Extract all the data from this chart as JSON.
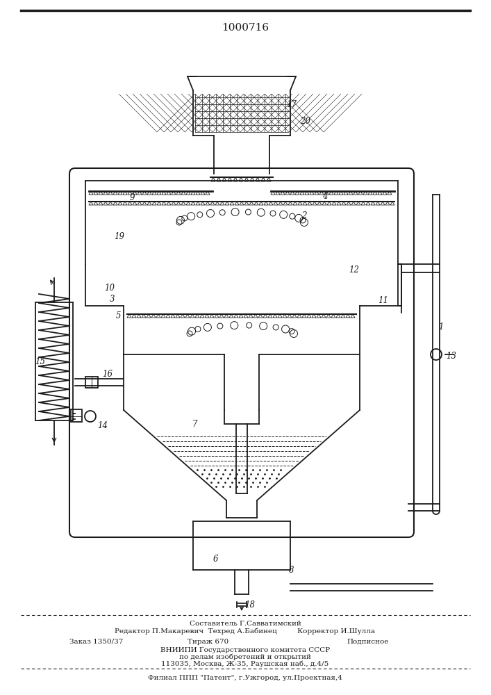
{
  "patent_number": "1000716",
  "background_color": "#ffffff",
  "line_color": "#1a1a1a",
  "footer_lines": [
    "Составитель Г.Савватимский",
    "Редактор П.Макаревич  Техред А.Бабинец         Корректор И.Шулла",
    "Заказ 1350/37          Тираж 670                    Подписное",
    "ВНИИПИ Государственного комитета СССР",
    "по делам изобретений и открытий",
    "113035, Москва, Ж-35, Раушская наб., д.4/5",
    "Филиал ППП \"Патент\", г.Ужгород, ул.Проектная,4"
  ]
}
